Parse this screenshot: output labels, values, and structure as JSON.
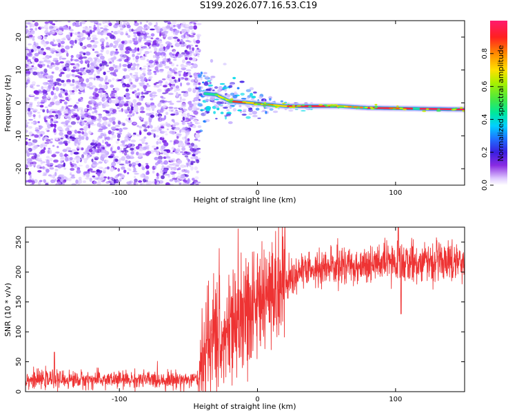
{
  "title": "S199.2026.077.16.53.C19",
  "chart_data": [
    {
      "type": "heatmap",
      "name": "spectrogram",
      "xlabel": "Height of straight line (km)",
      "ylabel": "Frequency (Hz)",
      "xlim": [
        -168,
        150
      ],
      "ylim": [
        -25,
        25
      ],
      "xticks": [
        -100,
        0,
        100
      ],
      "yticks": [
        -20,
        -10,
        0,
        10,
        20
      ],
      "noise_region_x": [
        -168,
        -42
      ],
      "transition_region_x": [
        -42,
        20
      ],
      "signal_track": [
        {
          "x": -42,
          "y": 3
        },
        {
          "x": -30,
          "y": 2.5
        },
        {
          "x": -20,
          "y": 0.5
        },
        {
          "x": -5,
          "y": 0
        },
        {
          "x": 20,
          "y": -1
        },
        {
          "x": 60,
          "y": -1
        },
        {
          "x": 80,
          "y": -1.5
        },
        {
          "x": 150,
          "y": -2
        }
      ],
      "colorbar": {
        "label": "Normalized spectral amplitude",
        "range": [
          0,
          1
        ],
        "ticks": [
          0.0,
          0.2,
          0.4,
          0.6,
          0.8
        ]
      }
    },
    {
      "type": "line",
      "name": "snr",
      "xlabel": "Height of straight line (km)",
      "ylabel": "SNR (10 * v/v)",
      "xlim": [
        -168,
        150
      ],
      "ylim": [
        0,
        275
      ],
      "xticks": [
        -100,
        0,
        100
      ],
      "yticks": [
        0,
        50,
        100,
        150,
        200,
        250
      ],
      "color": "#ee3333",
      "series": [
        {
          "name": "SNR envelope",
          "x": [
            -168,
            -100,
            -60,
            -42,
            -38,
            -30,
            -20,
            -10,
            0,
            10,
            20,
            30,
            60,
            100,
            150
          ],
          "y": [
            20,
            20,
            20,
            20,
            60,
            80,
            100,
            115,
            130,
            160,
            185,
            200,
            210,
            215,
            220
          ]
        }
      ],
      "features": [
        {
          "x": -147,
          "y": 66
        },
        {
          "x": 102,
          "y": 275
        },
        {
          "x": 104,
          "y": 130
        }
      ]
    }
  ]
}
